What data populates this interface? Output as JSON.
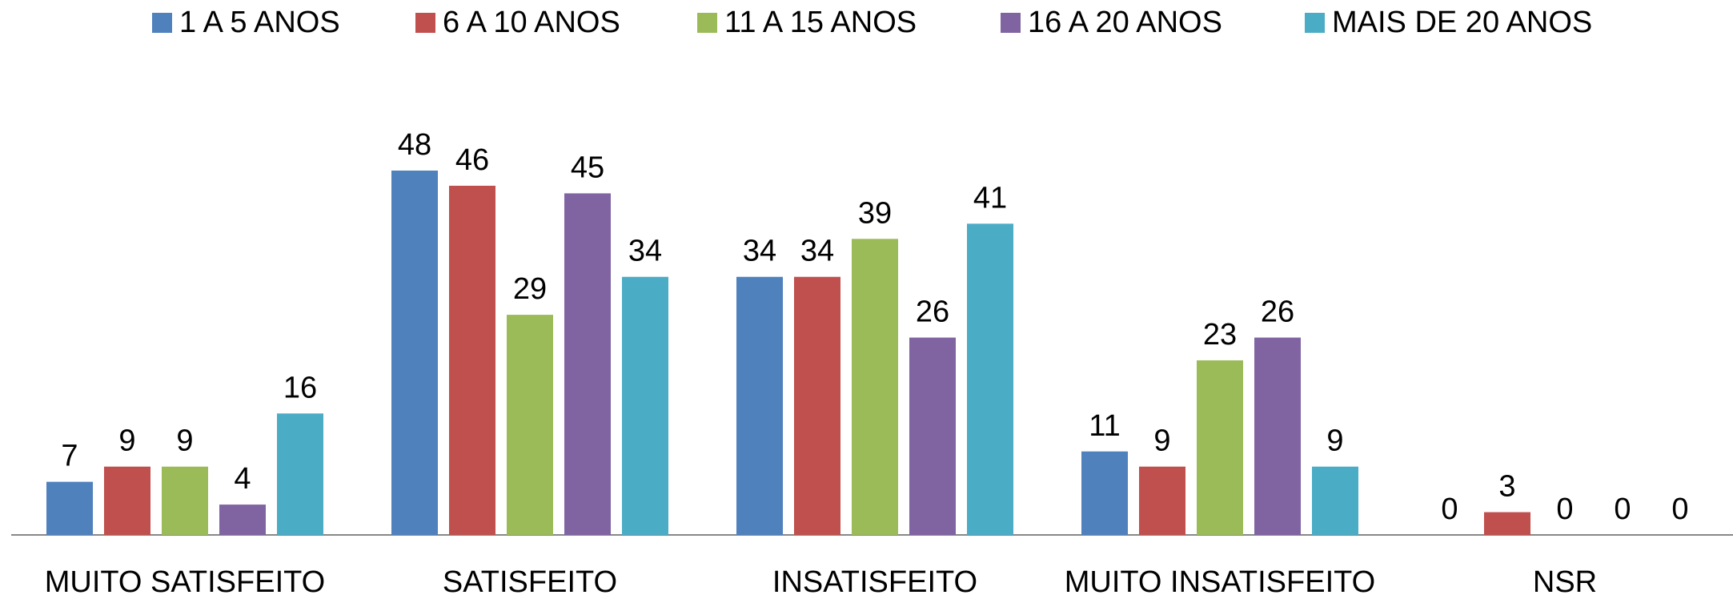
{
  "chart_data": {
    "type": "bar",
    "categories": [
      "MUITO SATISFEITO",
      "SATISFEITO",
      "INSATISFEITO",
      "MUITO INSATISFEITO",
      "NSR"
    ],
    "series": [
      {
        "name": "1 A 5 ANOS",
        "color": "#4f81bd",
        "values": [
          7,
          48,
          34,
          11,
          0
        ]
      },
      {
        "name": "6 A 10 ANOS",
        "color": "#c0504d",
        "values": [
          9,
          46,
          34,
          9,
          3
        ]
      },
      {
        "name": "11 A 15 ANOS",
        "color": "#9bbb59",
        "values": [
          9,
          29,
          39,
          23,
          0
        ]
      },
      {
        "name": "16 A 20 ANOS",
        "color": "#8064a2",
        "values": [
          4,
          45,
          26,
          26,
          0
        ]
      },
      {
        "name": "MAIS DE 20 ANOS",
        "color": "#4bacc6",
        "values": [
          16,
          34,
          41,
          9,
          0
        ]
      }
    ],
    "legend": "top"
  }
}
